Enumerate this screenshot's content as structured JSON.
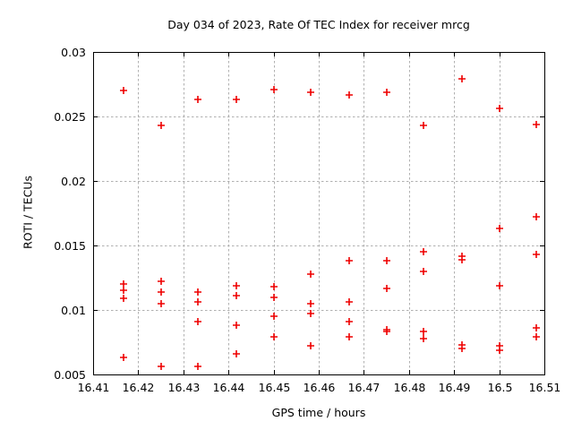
{
  "chart_data": {
    "type": "scatter",
    "title": "Day 034 of 2023, Rate Of TEC Index for receiver mrcg",
    "xlabel": "GPS time / hours",
    "ylabel": "ROTI / TECUs",
    "xlim": [
      16.41,
      16.51
    ],
    "ylim": [
      0.005,
      0.03
    ],
    "grid": true,
    "legend": "none",
    "marker": "plus",
    "colors": {
      "marker": "#ee0000",
      "grid": "#b0b0b0",
      "axis": "#000000",
      "background": "#ffffff"
    },
    "xticks": {
      "values": [
        16.41,
        16.42,
        16.43,
        16.44,
        16.45,
        16.46,
        16.47,
        16.48,
        16.49,
        16.5,
        16.51
      ],
      "labels": [
        "16.41",
        "16.42",
        "16.43",
        "16.44",
        "16.45",
        "16.46",
        "16.47",
        "16.48",
        "16.49",
        "16.5",
        "16.51"
      ]
    },
    "yticks": {
      "values": [
        0.005,
        0.01,
        0.015,
        0.02,
        0.025,
        0.03
      ],
      "labels": [
        "0.005",
        "0.01",
        "0.015",
        "0.02",
        "0.025",
        "0.03"
      ]
    },
    "series": [
      {
        "name": "ROTI",
        "points": [
          [
            16.4167,
            0.027
          ],
          [
            16.4167,
            0.012
          ],
          [
            16.4167,
            0.0115
          ],
          [
            16.4167,
            0.0109
          ],
          [
            16.4167,
            0.0063
          ],
          [
            16.425,
            0.0243
          ],
          [
            16.425,
            0.0122
          ],
          [
            16.425,
            0.0114
          ],
          [
            16.425,
            0.0105
          ],
          [
            16.425,
            0.0056
          ],
          [
            16.4333,
            0.0263
          ],
          [
            16.4333,
            0.0114
          ],
          [
            16.4333,
            0.0106
          ],
          [
            16.4333,
            0.0091
          ],
          [
            16.4333,
            0.0056
          ],
          [
            16.4417,
            0.0263
          ],
          [
            16.4417,
            0.0119
          ],
          [
            16.4417,
            0.0111
          ],
          [
            16.4417,
            0.0088
          ],
          [
            16.4417,
            0.0066
          ],
          [
            16.45,
            0.0271
          ],
          [
            16.45,
            0.0118
          ],
          [
            16.45,
            0.011
          ],
          [
            16.45,
            0.0095
          ],
          [
            16.45,
            0.0079
          ],
          [
            16.4583,
            0.0269
          ],
          [
            16.4583,
            0.0128
          ],
          [
            16.4583,
            0.0105
          ],
          [
            16.4583,
            0.0097
          ],
          [
            16.4583,
            0.0072
          ],
          [
            16.4667,
            0.0267
          ],
          [
            16.4667,
            0.0138
          ],
          [
            16.4667,
            0.0106
          ],
          [
            16.4667,
            0.0091
          ],
          [
            16.4667,
            0.0079
          ],
          [
            16.475,
            0.0269
          ],
          [
            16.475,
            0.0138
          ],
          [
            16.475,
            0.0117
          ],
          [
            16.475,
            0.0085
          ],
          [
            16.475,
            0.0083
          ],
          [
            16.4833,
            0.0243
          ],
          [
            16.4833,
            0.0145
          ],
          [
            16.4833,
            0.013
          ],
          [
            16.4833,
            0.0083
          ],
          [
            16.4833,
            0.0078
          ],
          [
            16.4917,
            0.0279
          ],
          [
            16.4917,
            0.0142
          ],
          [
            16.4917,
            0.0139
          ],
          [
            16.4917,
            0.0073
          ],
          [
            16.4917,
            0.007
          ],
          [
            16.5,
            0.0256
          ],
          [
            16.5,
            0.0163
          ],
          [
            16.5,
            0.0119
          ],
          [
            16.5,
            0.0072
          ],
          [
            16.5,
            0.0069
          ],
          [
            16.5083,
            0.0244
          ],
          [
            16.5083,
            0.0172
          ],
          [
            16.5083,
            0.0143
          ],
          [
            16.5083,
            0.0086
          ],
          [
            16.5083,
            0.0079
          ]
        ]
      }
    ]
  }
}
